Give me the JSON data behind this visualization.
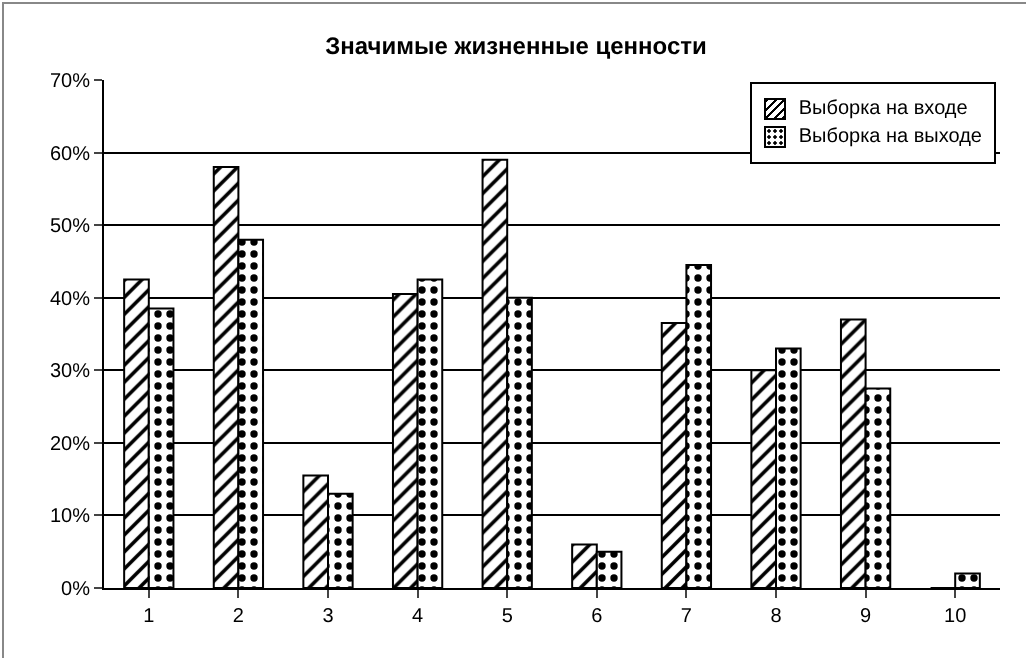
{
  "chart_data": {
    "type": "bar",
    "title": "Значимые жизненные ценности",
    "categories": [
      "1",
      "2",
      "3",
      "4",
      "5",
      "6",
      "7",
      "8",
      "9",
      "10"
    ],
    "series": [
      {
        "name": "Выборка на входе",
        "color": "#000000",
        "values": [
          42.5,
          58,
          15.5,
          40.5,
          59,
          6,
          36.5,
          30,
          37,
          0
        ]
      },
      {
        "name": "Выборка на выходе",
        "color": "#000000",
        "values": [
          38.5,
          48,
          13,
          42.5,
          40,
          5,
          44.5,
          33,
          27.5,
          2
        ]
      }
    ],
    "ylim": [
      0,
      70
    ],
    "yticks": [
      {
        "value": 0,
        "label": "0%"
      },
      {
        "value": 10,
        "label": "10%"
      },
      {
        "value": 20,
        "label": "20%"
      },
      {
        "value": 30,
        "label": "30%"
      },
      {
        "value": 40,
        "label": "40%"
      },
      {
        "value": 50,
        "label": "50%"
      },
      {
        "value": 60,
        "label": "60%"
      },
      {
        "value": 70,
        "label": "70%"
      }
    ],
    "grid": "y",
    "legend": "top right"
  }
}
